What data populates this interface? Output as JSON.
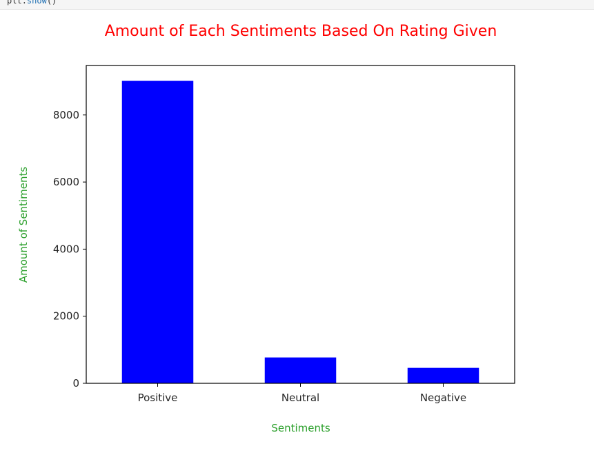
{
  "code_cell": {
    "object": "plt",
    "method": "show",
    "suffix": "()"
  },
  "colors": {
    "bar": "#0000ff",
    "title": "#ff0000",
    "axis_label": "#2ca02c",
    "tick_text": "#262626",
    "axis_line": "#000000"
  },
  "chart_data": {
    "type": "bar",
    "title": "Amount of Each Sentiments Based On Rating Given",
    "xlabel": "Sentiments",
    "ylabel": "Amount of Sentiments",
    "categories": [
      "Positive",
      "Neutral",
      "Negative"
    ],
    "values": [
      9020,
      770,
      460
    ],
    "ylim": [
      0,
      9475
    ],
    "yticks": [
      0,
      2000,
      4000,
      6000,
      8000
    ],
    "ytick_labels": [
      "0",
      "2000",
      "4000",
      "6000",
      "8000"
    ],
    "grid": false,
    "legend": "none"
  }
}
